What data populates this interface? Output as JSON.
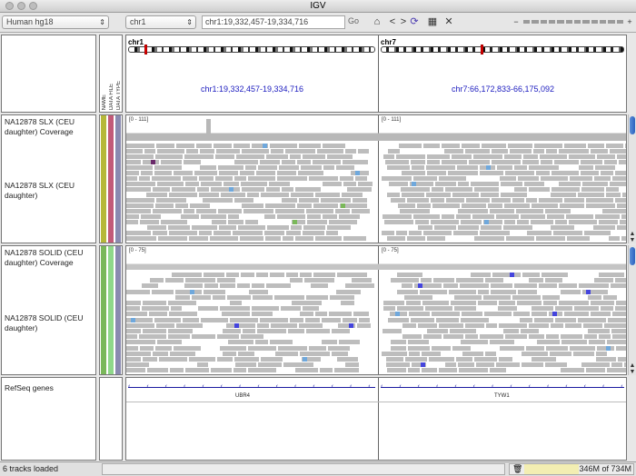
{
  "window": {
    "title": "IGV"
  },
  "toolbar": {
    "genome": "Human hg18",
    "chromosome": "chr1",
    "locus": "chr1:19,332,457-19,334,716",
    "go_label": "Go"
  },
  "attribute_headers": [
    "NAME",
    "DATA FILE",
    "DATA TYPE"
  ],
  "panels": [
    {
      "chromosome": "chr1",
      "locus": "chr1:19,332,457-19,334,716"
    },
    {
      "chromosome": "chr7",
      "locus": "chr7:66,172,833-66,175,092"
    }
  ],
  "tracks": {
    "slx_coverage": {
      "name": "NA12878 SLX (CEU daughter) Coverage",
      "range": "[0 - 111]"
    },
    "slx_reads": {
      "name": "NA12878 SLX (CEU daughter)"
    },
    "solid_coverage": {
      "name": "NA12878 SOLID (CEU daughter) Coverage",
      "range": "[0 - 75]"
    },
    "solid_reads": {
      "name": "NA12878 SOLID (CEU daughter)"
    },
    "refseq": {
      "name": "RefSeq genes",
      "genes": [
        "UBR4",
        "TYW1"
      ]
    }
  },
  "status": {
    "message": "6 tracks loaded",
    "memory_used": "346M",
    "memory_total": "of 734M"
  },
  "colors": {
    "mismatch_blue": "#6fa8dc",
    "mismatch_purple": "#6a2a6a",
    "mismatch_green": "#7ab85a",
    "solid_blue": "#4444dd",
    "gene_blue": "#1a1aa0",
    "locus_blue": "#2020c0"
  }
}
